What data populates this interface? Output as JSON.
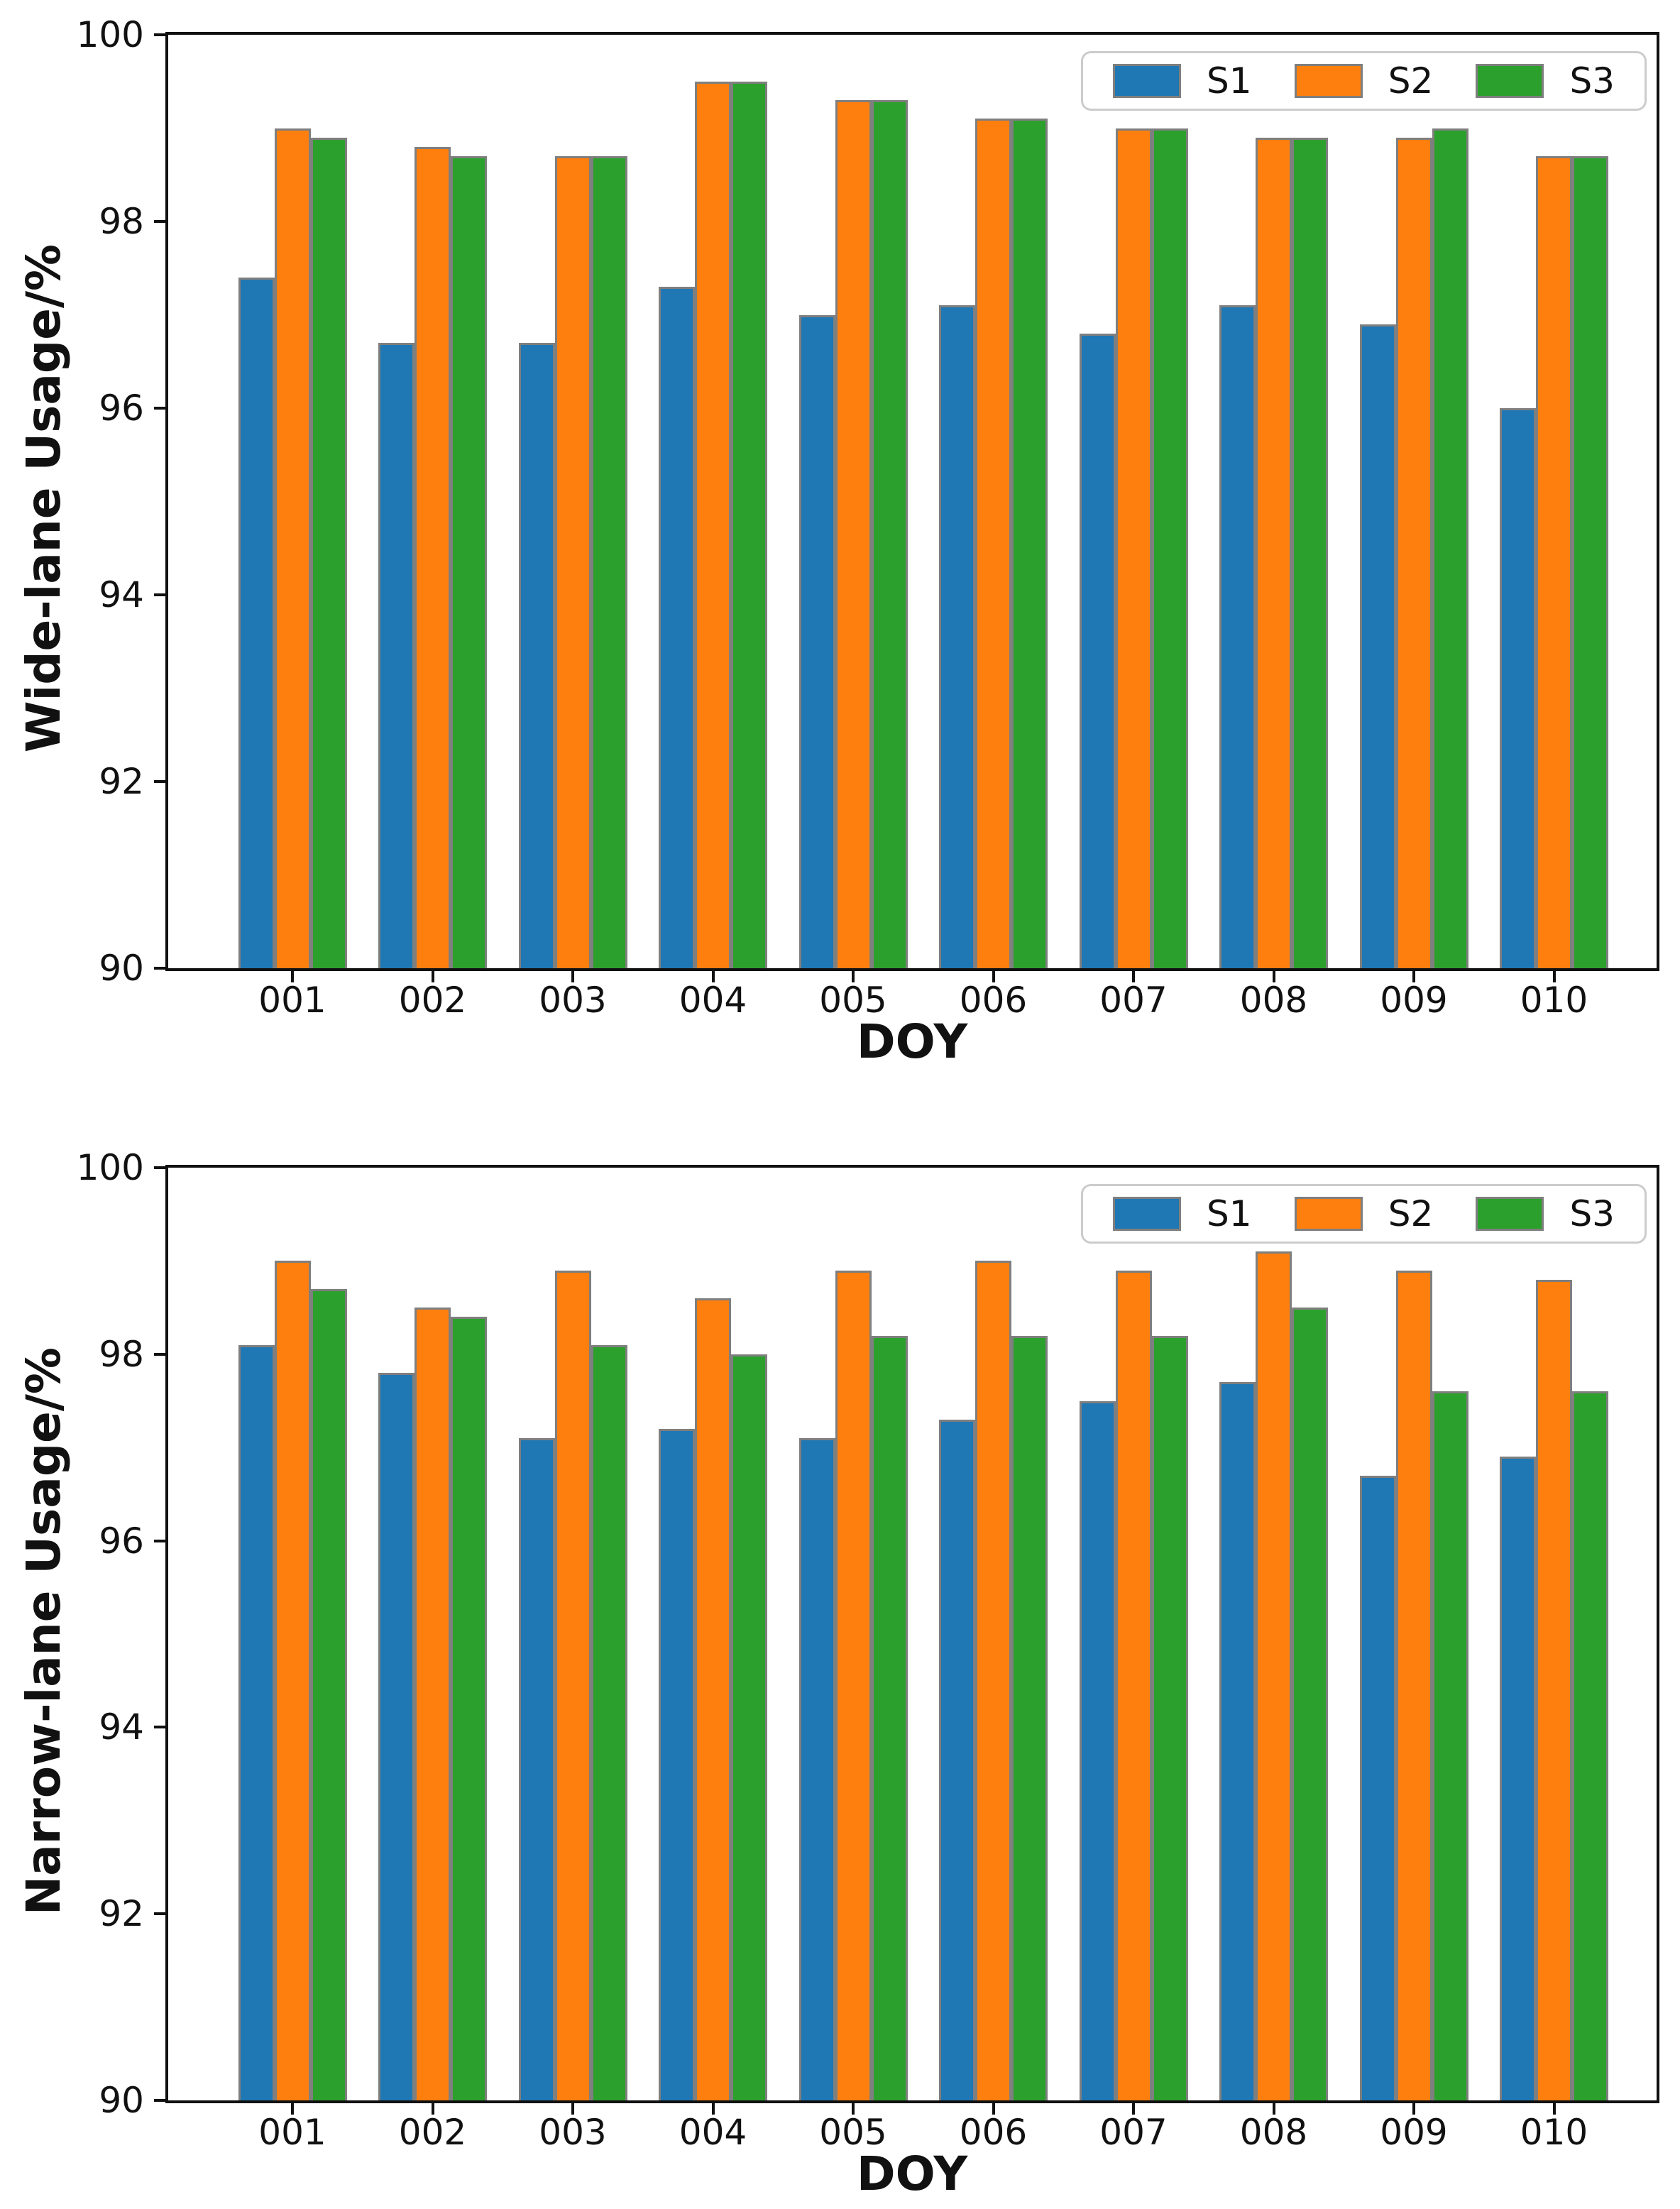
{
  "chart_data": [
    {
      "type": "bar",
      "title": "",
      "xlabel": "DOY",
      "ylabel": "Wide-lane Usage/%",
      "categories": [
        "001",
        "002",
        "003",
        "004",
        "005",
        "006",
        "007",
        "008",
        "009",
        "010"
      ],
      "series": [
        {
          "name": "S1",
          "color": "#1f77b4",
          "values": [
            97.4,
            96.7,
            96.7,
            97.3,
            97.0,
            97.1,
            96.8,
            97.1,
            96.9,
            96.0
          ]
        },
        {
          "name": "S2",
          "color": "#ff7f0e",
          "values": [
            99.0,
            98.8,
            98.7,
            99.5,
            99.3,
            99.1,
            99.0,
            98.9,
            98.9,
            98.7
          ]
        },
        {
          "name": "S3",
          "color": "#2ca02c",
          "values": [
            98.9,
            98.7,
            98.7,
            99.5,
            99.3,
            99.1,
            99.0,
            98.9,
            99.0,
            98.7
          ]
        }
      ],
      "ylim": [
        90,
        100
      ],
      "yticks": [
        90,
        92,
        94,
        96,
        98,
        100
      ],
      "grid": false,
      "legend_position": "upper right",
      "bar_edge_color": "#7f7f7f",
      "axis_color": "#111111"
    },
    {
      "type": "bar",
      "title": "",
      "xlabel": "DOY",
      "ylabel": "Narrow-lane Usage/%",
      "categories": [
        "001",
        "002",
        "003",
        "004",
        "005",
        "006",
        "007",
        "008",
        "009",
        "010"
      ],
      "series": [
        {
          "name": "S1",
          "color": "#1f77b4",
          "values": [
            98.1,
            97.8,
            97.1,
            97.2,
            97.1,
            97.3,
            97.5,
            97.7,
            96.7,
            96.9
          ]
        },
        {
          "name": "S2",
          "color": "#ff7f0e",
          "values": [
            99.0,
            98.5,
            98.9,
            98.6,
            98.9,
            99.0,
            98.9,
            99.1,
            98.9,
            98.8
          ]
        },
        {
          "name": "S3",
          "color": "#2ca02c",
          "values": [
            98.7,
            98.4,
            98.1,
            98.0,
            98.2,
            98.2,
            98.2,
            98.5,
            97.6,
            97.6
          ]
        }
      ],
      "ylim": [
        90,
        100
      ],
      "yticks": [
        90,
        92,
        94,
        96,
        98,
        100
      ],
      "grid": false,
      "legend_position": "upper right",
      "bar_edge_color": "#7f7f7f",
      "axis_color": "#111111"
    }
  ]
}
